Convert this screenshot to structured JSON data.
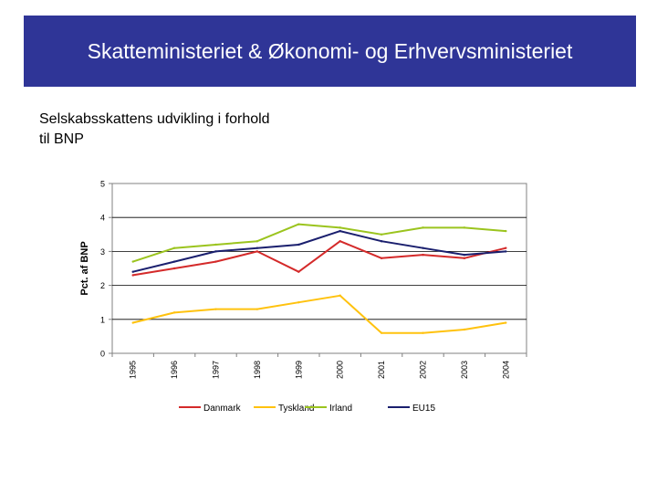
{
  "header": {
    "title": "Skatteministeriet & Økonomi- og Erhvervsministeriet"
  },
  "subtitle": "Selskabsskattens udvikling i forhold til BNP",
  "colors": {
    "banner": "#2f3597"
  },
  "chart_data": {
    "type": "line",
    "ylabel": "Pct. af BNP",
    "xlabel": "",
    "categories": [
      "1995",
      "1996",
      "1997",
      "1998",
      "1999",
      "2000",
      "2001",
      "2002",
      "2003",
      "2004"
    ],
    "yticks": [
      0,
      1,
      2,
      3,
      4,
      5
    ],
    "ylim": [
      0,
      5
    ],
    "grid": true,
    "legend_position": "bottom",
    "series": [
      {
        "name": "Danmark",
        "color": "#d42a2a",
        "values": [
          2.3,
          2.5,
          2.7,
          3.0,
          2.4,
          3.3,
          2.8,
          2.9,
          2.8,
          3.1
        ]
      },
      {
        "name": "Tyskland",
        "color": "#ffc20e",
        "values": [
          0.9,
          1.2,
          1.3,
          1.3,
          1.5,
          1.7,
          0.6,
          0.6,
          0.7,
          0.9
        ]
      },
      {
        "name": "Irland",
        "color": "#9bc41e",
        "values": [
          2.7,
          3.1,
          3.2,
          3.3,
          3.8,
          3.7,
          3.5,
          3.7,
          3.7,
          3.6
        ]
      },
      {
        "name": "EU15",
        "color": "#1a1f6e",
        "values": [
          2.4,
          2.7,
          3.0,
          3.1,
          3.2,
          3.6,
          3.3,
          3.1,
          2.9,
          3.0
        ]
      }
    ]
  }
}
